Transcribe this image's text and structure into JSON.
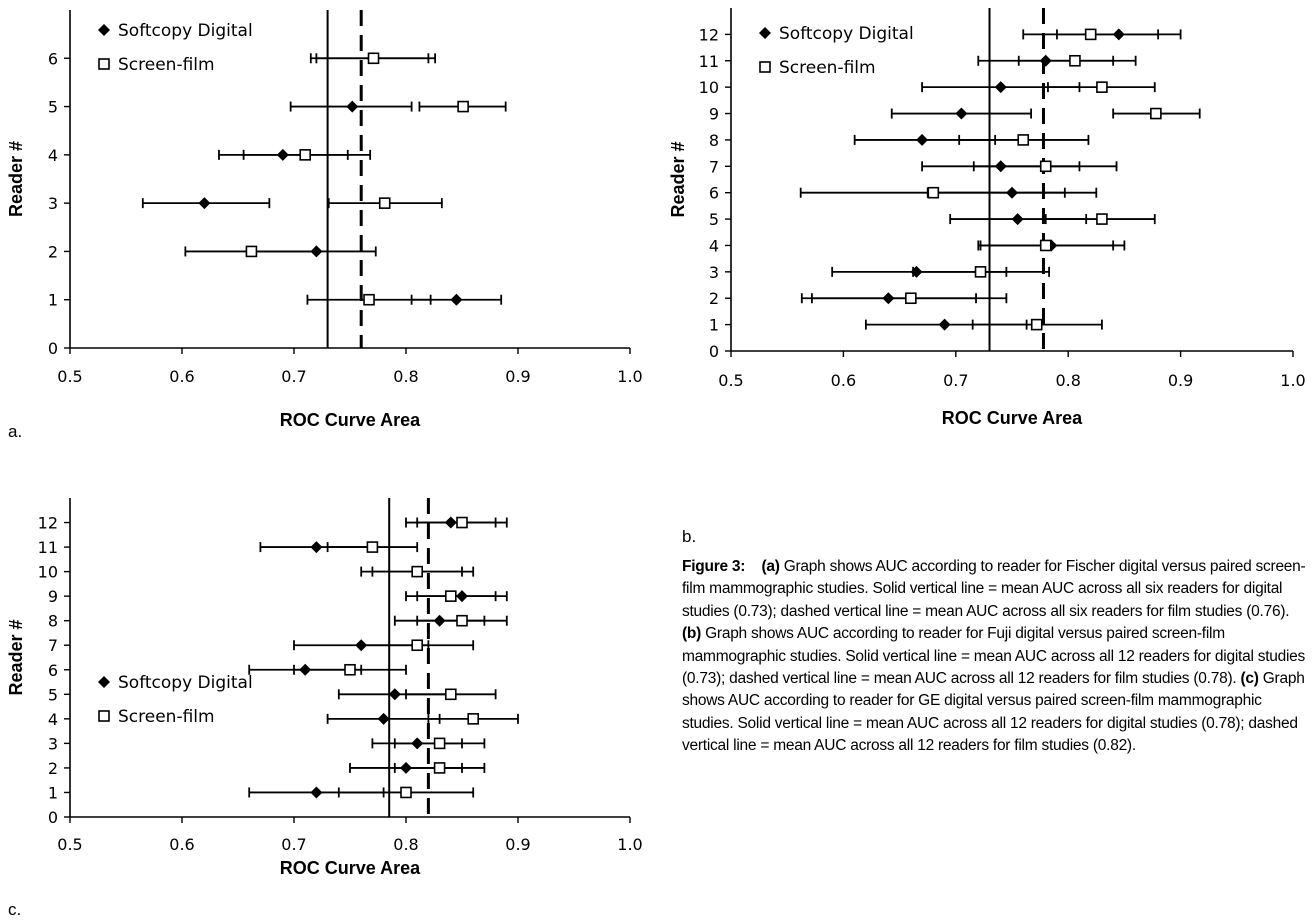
{
  "panel_labels": [
    "a.",
    "b.",
    "c."
  ],
  "caption": {
    "figure_label": "Figure 3:",
    "parts": [
      {
        "bold": "(a)",
        "text": " Graph shows AUC according to reader for Fischer digital versus paired screen-film mammographic studies. Solid vertical line = mean AUC across all six readers for digital studies (0.73); dashed vertical line = mean AUC across all six readers for film studies (0.76). "
      },
      {
        "bold": "(b)",
        "text": " Graph shows AUC according to reader for Fuji digital versus paired screen-film mammographic studies. Solid vertical line = mean AUC across all 12 readers for digital studies (0.73); dashed vertical line = mean AUC across all 12 readers for film studies (0.78). "
      },
      {
        "bold": "(c)",
        "text": " Graph shows AUC according to reader for GE digital versus paired screen-film mammographic studies. Solid vertical line = mean AUC across all 12 readers for digital studies (0.78); dashed vertical line = mean AUC across all 12 readers for film studies (0.82)."
      }
    ]
  },
  "chart_data": [
    {
      "type": "scatter",
      "panel": "a.",
      "xlabel": "ROC Curve Area",
      "ylabel": "Reader #",
      "xlim": [
        0.5,
        1.0
      ],
      "ylim": [
        0,
        7
      ],
      "x_ticks": [
        "0.5",
        "0.6",
        "0.7",
        "0.8",
        "0.9",
        "1.0"
      ],
      "y_ticks": [
        "0",
        "1",
        "2",
        "3",
        "4",
        "5",
        "6"
      ],
      "mean_lines": {
        "solid": 0.73,
        "dashed": 0.76
      },
      "legend": {
        "position": "top-left",
        "entries": [
          "Softcopy Digital",
          "Screen-film"
        ]
      },
      "series": [
        {
          "name": "Softcopy Digital",
          "marker": "diamond",
          "points": [
            {
              "reader": 1,
              "auc": 0.845,
              "lo": 0.805,
              "hi": 0.885
            },
            {
              "reader": 2,
              "auc": 0.72,
              "lo": 0.665,
              "hi": 0.773
            },
            {
              "reader": 3,
              "auc": 0.62,
              "lo": 0.565,
              "hi": 0.678
            },
            {
              "reader": 4,
              "auc": 0.69,
              "lo": 0.633,
              "hi": 0.748
            },
            {
              "reader": 5,
              "auc": 0.752,
              "lo": 0.697,
              "hi": 0.805
            },
            {
              "reader": 6,
              "auc": 0.77,
              "lo": 0.72,
              "hi": 0.82
            }
          ]
        },
        {
          "name": "Screen-film",
          "marker": "square",
          "points": [
            {
              "reader": 1,
              "auc": 0.767,
              "lo": 0.712,
              "hi": 0.822
            },
            {
              "reader": 2,
              "auc": 0.662,
              "lo": 0.603,
              "hi": 0.72
            },
            {
              "reader": 3,
              "auc": 0.781,
              "lo": 0.731,
              "hi": 0.832
            },
            {
              "reader": 4,
              "auc": 0.71,
              "lo": 0.655,
              "hi": 0.768
            },
            {
              "reader": 5,
              "auc": 0.851,
              "lo": 0.812,
              "hi": 0.889
            },
            {
              "reader": 6,
              "auc": 0.771,
              "lo": 0.715,
              "hi": 0.826
            }
          ]
        }
      ]
    },
    {
      "type": "scatter",
      "panel": "b.",
      "xlabel": "ROC Curve Area",
      "ylabel": "Reader #",
      "xlim": [
        0.5,
        1.0
      ],
      "ylim": [
        0,
        13
      ],
      "x_ticks": [
        "0.5",
        "0.6",
        "0.7",
        "0.8",
        "0.9",
        "1.0"
      ],
      "y_ticks": [
        "0",
        "1",
        "2",
        "3",
        "4",
        "5",
        "6",
        "7",
        "8",
        "9",
        "10",
        "11",
        "12"
      ],
      "mean_lines": {
        "solid": 0.73,
        "dashed": 0.778
      },
      "legend": {
        "position": "top-left",
        "entries": [
          "Softcopy Digital",
          "Screen-film"
        ]
      },
      "series": [
        {
          "name": "Softcopy Digital",
          "marker": "diamond",
          "points": [
            {
              "reader": 1,
              "auc": 0.69,
              "lo": 0.62,
              "hi": 0.763
            },
            {
              "reader": 2,
              "auc": 0.64,
              "lo": 0.563,
              "hi": 0.718
            },
            {
              "reader": 3,
              "auc": 0.665,
              "lo": 0.59,
              "hi": 0.745
            },
            {
              "reader": 4,
              "auc": 0.785,
              "lo": 0.722,
              "hi": 0.85
            },
            {
              "reader": 5,
              "auc": 0.755,
              "lo": 0.695,
              "hi": 0.816
            },
            {
              "reader": 6,
              "auc": 0.75,
              "lo": 0.675,
              "hi": 0.825
            },
            {
              "reader": 7,
              "auc": 0.74,
              "lo": 0.67,
              "hi": 0.81
            },
            {
              "reader": 8,
              "auc": 0.67,
              "lo": 0.61,
              "hi": 0.735
            },
            {
              "reader": 9,
              "auc": 0.705,
              "lo": 0.643,
              "hi": 0.767
            },
            {
              "reader": 10,
              "auc": 0.74,
              "lo": 0.67,
              "hi": 0.81
            },
            {
              "reader": 11,
              "auc": 0.78,
              "lo": 0.72,
              "hi": 0.84
            },
            {
              "reader": 12,
              "auc": 0.845,
              "lo": 0.79,
              "hi": 0.9
            }
          ]
        },
        {
          "name": "Screen-film",
          "marker": "square",
          "points": [
            {
              "reader": 1,
              "auc": 0.772,
              "lo": 0.715,
              "hi": 0.83
            },
            {
              "reader": 2,
              "auc": 0.66,
              "lo": 0.572,
              "hi": 0.745
            },
            {
              "reader": 3,
              "auc": 0.722,
              "lo": 0.662,
              "hi": 0.783
            },
            {
              "reader": 4,
              "auc": 0.78,
              "lo": 0.72,
              "hi": 0.84
            },
            {
              "reader": 5,
              "auc": 0.83,
              "lo": 0.78,
              "hi": 0.877
            },
            {
              "reader": 6,
              "auc": 0.68,
              "lo": 0.562,
              "hi": 0.797
            },
            {
              "reader": 7,
              "auc": 0.78,
              "lo": 0.716,
              "hi": 0.843
            },
            {
              "reader": 8,
              "auc": 0.76,
              "lo": 0.703,
              "hi": 0.818
            },
            {
              "reader": 9,
              "auc": 0.878,
              "lo": 0.84,
              "hi": 0.917
            },
            {
              "reader": 10,
              "auc": 0.83,
              "lo": 0.782,
              "hi": 0.877
            },
            {
              "reader": 11,
              "auc": 0.806,
              "lo": 0.756,
              "hi": 0.86
            },
            {
              "reader": 12,
              "auc": 0.82,
              "lo": 0.76,
              "hi": 0.88
            }
          ]
        }
      ]
    },
    {
      "type": "scatter",
      "panel": "c.",
      "xlabel": "ROC Curve Area",
      "ylabel": "Reader #",
      "xlim": [
        0.5,
        1.0
      ],
      "ylim": [
        0,
        13
      ],
      "x_ticks": [
        "0.5",
        "0.6",
        "0.7",
        "0.8",
        "0.9",
        "1.0"
      ],
      "y_ticks": [
        "0",
        "1",
        "2",
        "3",
        "4",
        "5",
        "6",
        "7",
        "8",
        "9",
        "10",
        "11",
        "12"
      ],
      "mean_lines": {
        "solid": 0.785,
        "dashed": 0.82
      },
      "legend": {
        "position": "bottom-left",
        "entries": [
          "Softcopy Digital",
          "Screen-film"
        ]
      },
      "series": [
        {
          "name": "Softcopy Digital",
          "marker": "diamond",
          "points": [
            {
              "reader": 1,
              "auc": 0.72,
              "lo": 0.66,
              "hi": 0.78
            },
            {
              "reader": 2,
              "auc": 0.8,
              "lo": 0.75,
              "hi": 0.85
            },
            {
              "reader": 3,
              "auc": 0.81,
              "lo": 0.77,
              "hi": 0.85
            },
            {
              "reader": 4,
              "auc": 0.78,
              "lo": 0.73,
              "hi": 0.83
            },
            {
              "reader": 5,
              "auc": 0.79,
              "lo": 0.74,
              "hi": 0.84
            },
            {
              "reader": 6,
              "auc": 0.71,
              "lo": 0.66,
              "hi": 0.76
            },
            {
              "reader": 7,
              "auc": 0.76,
              "lo": 0.7,
              "hi": 0.82
            },
            {
              "reader": 8,
              "auc": 0.83,
              "lo": 0.79,
              "hi": 0.87
            },
            {
              "reader": 9,
              "auc": 0.85,
              "lo": 0.81,
              "hi": 0.89
            },
            {
              "reader": 10,
              "auc": 0.81,
              "lo": 0.77,
              "hi": 0.85
            },
            {
              "reader": 11,
              "auc": 0.72,
              "lo": 0.67,
              "hi": 0.77
            },
            {
              "reader": 12,
              "auc": 0.84,
              "lo": 0.8,
              "hi": 0.88
            }
          ]
        },
        {
          "name": "Screen-film",
          "marker": "square",
          "points": [
            {
              "reader": 1,
              "auc": 0.8,
              "lo": 0.74,
              "hi": 0.86
            },
            {
              "reader": 2,
              "auc": 0.83,
              "lo": 0.79,
              "hi": 0.87
            },
            {
              "reader": 3,
              "auc": 0.83,
              "lo": 0.79,
              "hi": 0.87
            },
            {
              "reader": 4,
              "auc": 0.86,
              "lo": 0.82,
              "hi": 0.9
            },
            {
              "reader": 5,
              "auc": 0.84,
              "lo": 0.8,
              "hi": 0.88
            },
            {
              "reader": 6,
              "auc": 0.75,
              "lo": 0.7,
              "hi": 0.8
            },
            {
              "reader": 7,
              "auc": 0.81,
              "lo": 0.76,
              "hi": 0.86
            },
            {
              "reader": 8,
              "auc": 0.85,
              "lo": 0.81,
              "hi": 0.89
            },
            {
              "reader": 9,
              "auc": 0.84,
              "lo": 0.8,
              "hi": 0.88
            },
            {
              "reader": 10,
              "auc": 0.81,
              "lo": 0.76,
              "hi": 0.86
            },
            {
              "reader": 11,
              "auc": 0.77,
              "lo": 0.73,
              "hi": 0.81
            },
            {
              "reader": 12,
              "auc": 0.85,
              "lo": 0.81,
              "hi": 0.89
            }
          ]
        }
      ]
    }
  ]
}
